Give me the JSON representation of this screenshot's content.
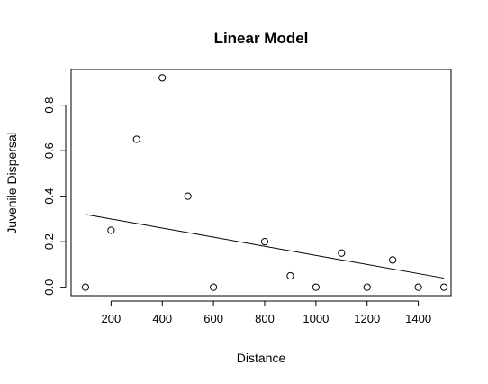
{
  "chart_data": {
    "type": "scatter",
    "title": "Linear Model",
    "xlabel": "Distance",
    "ylabel": "Juvenile Dispersal",
    "xlim": [
      44,
      1528
    ],
    "ylim": [
      -0.037,
      0.957
    ],
    "xticks": [
      200,
      400,
      600,
      800,
      1000,
      1200,
      1400
    ],
    "yticks": [
      0.0,
      0.2,
      0.4,
      0.6,
      0.8
    ],
    "xtick_labels": [
      "200",
      "400",
      "600",
      "800",
      "1000",
      "1200",
      "1400"
    ],
    "ytick_labels": [
      "0.0",
      "0.2",
      "0.4",
      "0.6",
      "0.8"
    ],
    "grid": false,
    "series": [
      {
        "x": [
          100,
          200,
          300,
          400,
          500,
          600,
          800,
          900,
          1000,
          1100,
          1200,
          1300,
          1400,
          1500
        ],
        "y": [
          0.0,
          0.25,
          0.65,
          0.92,
          0.4,
          0.0,
          0.2,
          0.05,
          0.0,
          0.15,
          0.0,
          0.12,
          0.0,
          0.0
        ]
      }
    ],
    "fit_line": {
      "x": [
        100,
        1500
      ],
      "y": [
        0.32,
        0.04
      ]
    }
  }
}
